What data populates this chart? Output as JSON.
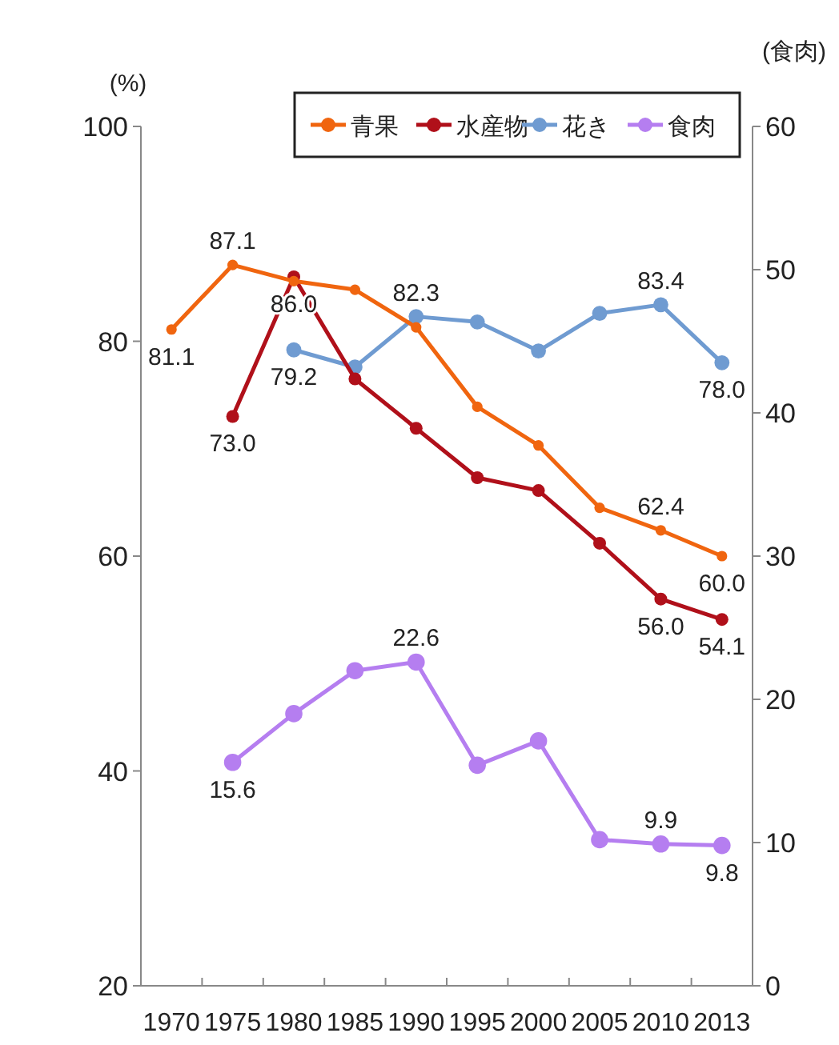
{
  "chart_data": {
    "type": "line",
    "ylabel": "(%)",
    "y2label": "(食肉)",
    "categories": [
      "1970",
      "1975",
      "1980",
      "1985",
      "1990",
      "1995",
      "2000",
      "2005",
      "2010",
      "2013"
    ],
    "series": [
      {
        "name": "青果",
        "color": "#f0650f",
        "values": [
          81.1,
          87.1,
          85.6,
          84.8,
          81.3,
          73.9,
          70.3,
          64.5,
          62.4,
          60.0
        ],
        "value_labels": [
          "81.1",
          "87.1",
          null,
          null,
          null,
          null,
          null,
          null,
          "62.4",
          "60.0"
        ]
      },
      {
        "name": "水産物",
        "color": "#b0101a",
        "values": [
          null,
          73.0,
          86.0,
          76.5,
          71.9,
          67.3,
          66.1,
          61.2,
          56.0,
          54.1
        ],
        "value_labels": [
          null,
          "73.0",
          "86.0",
          null,
          null,
          null,
          null,
          null,
          "56.0",
          "54.1"
        ]
      },
      {
        "name": "花き",
        "color": "#6f9bd1",
        "values": [
          null,
          null,
          79.2,
          77.6,
          82.3,
          81.8,
          79.1,
          82.6,
          83.4,
          78.0
        ],
        "value_labels": [
          null,
          null,
          "79.2",
          null,
          "82.3",
          null,
          null,
          null,
          "83.4",
          "78.0"
        ]
      },
      {
        "name": "食肉",
        "color": "#b57ef0",
        "axis": "y2",
        "values": [
          null,
          15.6,
          19.0,
          22.0,
          22.6,
          15.4,
          17.1,
          10.2,
          9.9,
          9.8
        ],
        "value_labels": [
          null,
          "15.6",
          null,
          null,
          "22.6",
          null,
          null,
          null,
          "9.9",
          "9.8"
        ]
      }
    ],
    "ylim": [
      20,
      100
    ],
    "yticks": [
      20,
      40,
      60,
      80,
      100
    ],
    "y2lim": [
      0,
      60
    ],
    "y2ticks": [
      0,
      10,
      20,
      30,
      40,
      50,
      60
    ],
    "grid": false,
    "legend": "top right",
    "marker": "circle",
    "line_style": "solid"
  }
}
